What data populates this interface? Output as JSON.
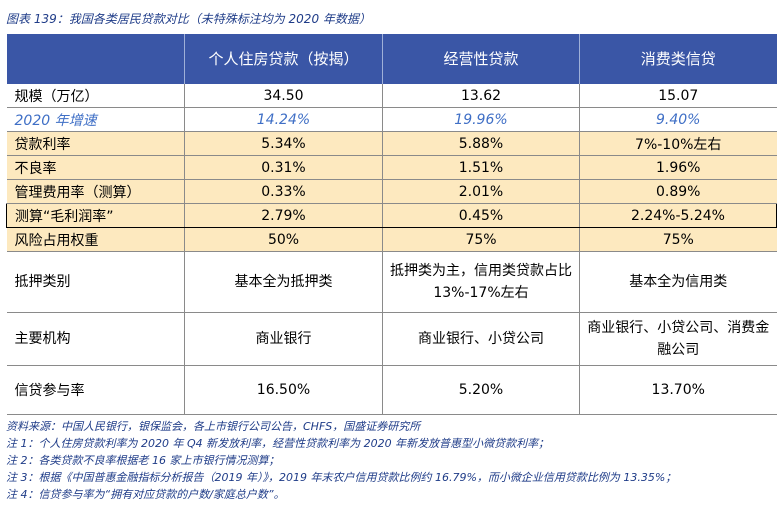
{
  "caption": "图表 139：我国各类居民贷款对比（未特殊标注均为 2020 年数据）",
  "header": [
    "",
    "个人住房贷款（按揭）",
    "经营性贷款",
    "消费类信贷"
  ],
  "rows": [
    {
      "label": "规模（万亿）",
      "values": [
        "34.50",
        "13.62",
        "15.07"
      ]
    },
    {
      "label": "2020 年增速",
      "values": [
        "14.24%",
        "19.96%",
        "9.40%"
      ]
    },
    {
      "label": "贷款利率",
      "values": [
        "5.34%",
        "5.88%",
        "7%-10%左右"
      ]
    },
    {
      "label": "不良率",
      "values": [
        "0.31%",
        "1.51%",
        "1.96%"
      ]
    },
    {
      "label": "管理费用率（测算）",
      "values": [
        "0.33%",
        "2.01%",
        "0.89%"
      ]
    },
    {
      "label": "测算“毛利润率”",
      "values": [
        "2.79%",
        "0.45%",
        "2.24%-5.24%"
      ]
    },
    {
      "label": "风险占用权重",
      "values": [
        "50%",
        "75%",
        "75%"
      ]
    },
    {
      "label": "抵押类别",
      "values": [
        "基本全为抵押类",
        "抵押类为主，信用类贷款占比 13%-17%左右",
        "基本全为信用类"
      ]
    },
    {
      "label": "主要机构",
      "values": [
        "商业银行",
        "商业银行、小贷公司",
        "商业银行、小贷公司、消费金融公司"
      ]
    },
    {
      "label": "信贷参与率",
      "values": [
        "16.50%",
        "5.20%",
        "13.70%"
      ]
    }
  ],
  "notes": [
    "资料来源：中国人民银行，银保监会，各上市银行公司公告，CHFS，国盛证券研究所",
    "注 1：个人住房贷款利率为 2020 年 Q4 新发放利率，经营性贷款利率为 2020 年新发放普惠型小微贷款利率；",
    "注 2：各类贷款不良率根据老 16 家上市银行情况测算；",
    "注 3：根据《中国普惠金融指标分析报告（2019 年）》，2019 年末农户信用贷款比例约 16.79%，而小微企业信用贷款比例为 13.35%；",
    "注 4：信贷参与率为“拥有对应贷款的户数/家庭总户数”。"
  ]
}
